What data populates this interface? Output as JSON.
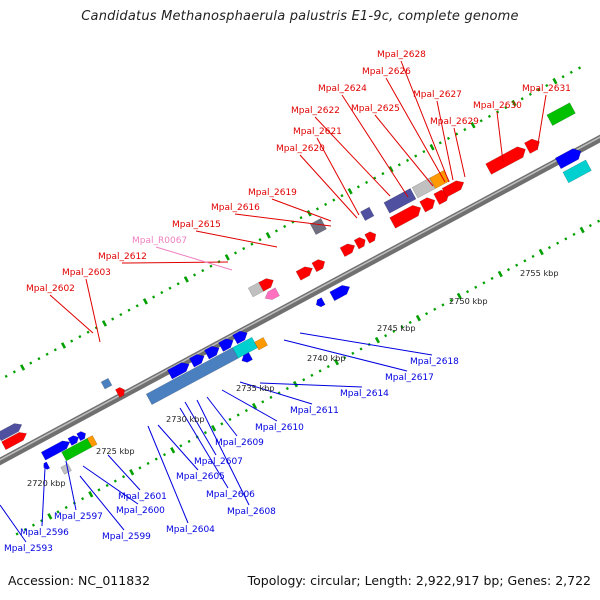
{
  "title": "Candidatus Methanosphaerula palustris E1-9c, complete genome",
  "footer": {
    "accession": "Accession: NC_011832",
    "topology": "Topology: circular; Length: 2,922,917 bp; Genes: 2,722"
  },
  "colors": {
    "backbone": "#808080",
    "forward_label": "#e00000",
    "reverse_label": "#0000e0",
    "rna_label": "#f080c0",
    "tick_fwd": "#00a000",
    "tick_rev": "#00a000",
    "gene_red": "#ff0000",
    "gene_blue": "#0000ff",
    "gene_purple": "#5050a0",
    "gene_lightgray": "#c0c0c0",
    "gene_gray": "#707080",
    "gene_orange": "#ff9900",
    "gene_green": "#00c000",
    "gene_steelblue": "#4a80c0",
    "gene_cyan": "#00d0d0",
    "gene_pink": "#ff70c0"
  },
  "scale_labels": [
    "2720 kbp",
    "2725 kbp",
    "2730 kbp",
    "2735 kbp",
    "2740 kbp",
    "2745 kbp",
    "2750 kbp",
    "2755 kbp"
  ],
  "forward_labels": [
    "Mpal_2602",
    "Mpal_2603",
    "Mpal_2612",
    "Mpal_R0067",
    "Mpal_2615",
    "Mpal_2616",
    "Mpal_2619",
    "Mpal_2620",
    "Mpal_2621",
    "Mpal_2622",
    "Mpal_2624",
    "Mpal_2625",
    "Mpal_2626",
    "Mpal_2627",
    "Mpal_2628",
    "Mpal_2629",
    "Mpal_2630",
    "Mpal_2631"
  ],
  "reverse_labels": [
    "Mpal_2593",
    "Mpal_2596",
    "Mpal_2597",
    "Mpal_2599",
    "Mpal_2600",
    "Mpal_2601",
    "Mpal_2604",
    "Mpal_2605",
    "Mpal_2606",
    "Mpal_2607",
    "Mpal_2608",
    "Mpal_2609",
    "Mpal_2610",
    "Mpal_2611",
    "Mpal_2614",
    "Mpal_2617",
    "Mpal_2618"
  ]
}
